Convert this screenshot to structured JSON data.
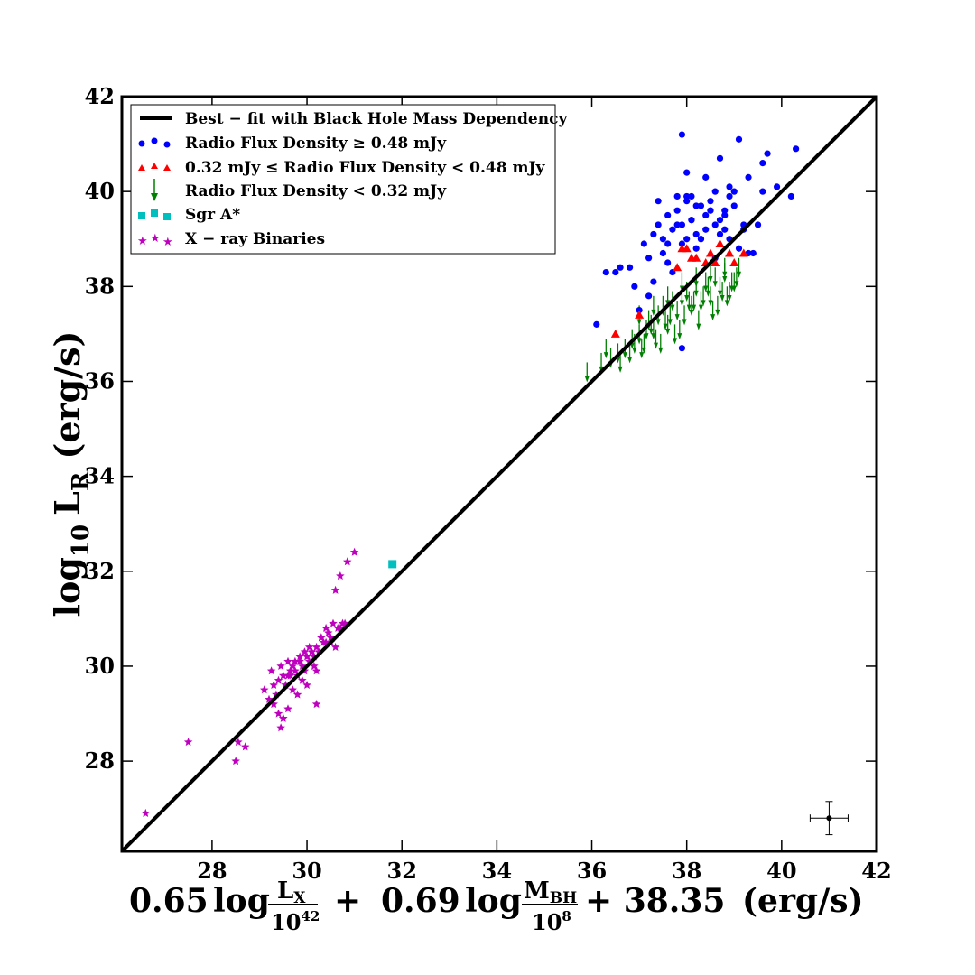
{
  "chart_data": {
    "type": "scatter",
    "title": "",
    "xlabel": "0.65 log (L_X / 10^42) + 0.69 log (M_BH / 10^8) + 38.35 (erg/s)",
    "ylabel": "log10 L_R (erg/s)",
    "xlim": [
      26.1,
      42
    ],
    "ylim": [
      26.1,
      42
    ],
    "xticks": [
      28,
      30,
      32,
      34,
      36,
      38,
      40,
      42
    ],
    "yticks": [
      28,
      30,
      32,
      34,
      36,
      38,
      40,
      42
    ],
    "xlabel_parts": {
      "coef1": "0.65",
      "log": "log",
      "n1": "L",
      "n1_sub": "X",
      "d1": "10",
      "d1_sup": "42",
      "plus": "+",
      "coef2": "0.69",
      "n2": "M",
      "n2_sub": "BH",
      "d2": "10",
      "d2_sup": "8",
      "tail": "+ 38.35",
      "unit": "(erg/s)"
    },
    "ylabel_parts": {
      "pre": "log",
      "pre_sub": "10",
      "main": "L",
      "main_sub": "R",
      "unit": "(erg/s)"
    },
    "legend": {
      "placement": "top-left",
      "entries": [
        {
          "label": "Best − fit with Black Hole Mass Dependency",
          "marker": "line",
          "color": "#000000"
        },
        {
          "label": "Radio Flux Density ≥ 0.48 mJy",
          "marker": "circle",
          "color": "#0000ff"
        },
        {
          "label": "0.32 mJy ≤ Radio Flux Density < 0.48 mJy",
          "marker": "triangle",
          "color": "#ff0000"
        },
        {
          "label": "Radio Flux Density < 0.32 mJy",
          "marker": "arrow",
          "color": "#008000"
        },
        {
          "label": "Sgr A*",
          "marker": "square",
          "color": "#00bfbf"
        },
        {
          "label": "X − ray  Binaries",
          "marker": "star",
          "color": "#bf00bf"
        }
      ]
    },
    "best_fit_line": {
      "x": [
        26.1,
        42
      ],
      "y": [
        26.1,
        42
      ]
    },
    "series": [
      {
        "name": "Radio Flux Density ≥ 0.48 mJy",
        "marker": "circle",
        "color": "#0000ff",
        "x": [
          37.9,
          38.7,
          39.1,
          39.7,
          40.3,
          39.6,
          38.0,
          38.4,
          39.3,
          39.9,
          40.2,
          37.4,
          37.8,
          38.2,
          38.5,
          38.9,
          39.0,
          37.6,
          38.1,
          38.6,
          38.8,
          37.3,
          37.7,
          37.9,
          38.3,
          38.7,
          39.2,
          39.5,
          39.4,
          38.4,
          38.0,
          37.5,
          36.8,
          37.1,
          36.5,
          36.9,
          37.2,
          36.1,
          38.6,
          38.2,
          37.8,
          38.8,
          39.1,
          37.6,
          38.0,
          38.5,
          38.9,
          39.2,
          37.7,
          37.3,
          38.1,
          38.3,
          37.4,
          39.6,
          37.9,
          38.7,
          38.2,
          37.6,
          38.4,
          38.0,
          37.5,
          38.8,
          39.0,
          37.8,
          38.1,
          38.3,
          36.6,
          36.3,
          37.0,
          38.6,
          37.2,
          39.3,
          38.9,
          38.5,
          37.9
        ],
        "y": [
          41.2,
          40.7,
          41.1,
          40.8,
          40.9,
          40.6,
          40.4,
          40.3,
          40.3,
          40.1,
          39.9,
          39.8,
          39.9,
          39.7,
          39.6,
          39.9,
          40.0,
          39.5,
          39.4,
          39.3,
          39.6,
          39.1,
          39.2,
          38.9,
          39.0,
          39.1,
          39.3,
          39.3,
          38.7,
          39.5,
          39.8,
          38.7,
          38.4,
          38.9,
          38.3,
          38.0,
          38.6,
          37.2,
          38.6,
          38.8,
          39.6,
          39.2,
          38.8,
          38.5,
          39.0,
          39.8,
          40.1,
          39.2,
          38.3,
          38.1,
          39.4,
          39.7,
          39.3,
          40.0,
          36.7,
          39.4,
          39.1,
          38.9,
          39.2,
          39.9,
          39.0,
          39.5,
          39.7,
          39.3,
          39.9,
          39.0,
          38.4,
          38.3,
          37.5,
          40.0,
          37.8,
          38.7,
          39.0,
          39.6,
          39.3
        ]
      },
      {
        "name": "0.32 mJy ≤ Radio Flux Density < 0.48 mJy",
        "marker": "triangle",
        "color": "#ff0000",
        "x": [
          36.5,
          37.0,
          37.8,
          38.0,
          38.2,
          38.5,
          38.7,
          39.0,
          39.2,
          38.4,
          38.9,
          37.9,
          38.1,
          38.6
        ],
        "y": [
          37.0,
          37.4,
          38.4,
          38.8,
          38.6,
          38.7,
          38.9,
          38.5,
          38.7,
          38.5,
          38.7,
          38.8,
          38.6,
          38.5
        ]
      },
      {
        "name": "Radio Flux Density < 0.32 mJy",
        "marker": "arrow",
        "color": "#008000",
        "x": [
          35.9,
          36.3,
          36.6,
          36.8,
          37.0,
          37.1,
          37.2,
          37.3,
          37.4,
          37.5,
          37.6,
          37.7,
          37.8,
          37.9,
          38.0,
          38.1,
          38.2,
          38.3,
          38.4,
          38.5,
          38.6,
          38.7,
          38.8,
          38.9,
          39.0,
          39.1,
          36.7,
          36.9,
          37.15,
          37.35,
          37.55,
          37.75,
          37.95,
          38.15,
          38.35,
          38.55,
          38.75,
          38.95,
          36.4,
          36.55,
          37.05,
          37.25,
          37.45,
          37.65,
          37.85,
          38.05,
          38.25,
          38.45,
          38.65,
          38.85,
          39.05,
          37.0,
          37.3,
          37.6,
          37.9,
          38.2,
          38.5,
          38.8,
          36.2,
          36.85
        ],
        "y": [
          36.4,
          36.9,
          36.6,
          36.8,
          37.2,
          37.0,
          37.5,
          37.3,
          37.6,
          37.8,
          37.4,
          37.9,
          37.7,
          38.0,
          38.1,
          37.8,
          38.2,
          37.9,
          38.3,
          38.0,
          38.4,
          38.2,
          38.5,
          38.1,
          38.3,
          38.6,
          36.9,
          37.0,
          37.3,
          37.1,
          37.5,
          37.2,
          37.6,
          37.9,
          38.0,
          37.7,
          38.1,
          38.3,
          36.7,
          36.8,
          36.9,
          37.4,
          37.0,
          37.6,
          37.3,
          37.9,
          37.5,
          38.2,
          37.8,
          38.0,
          38.4,
          37.6,
          37.8,
          38.0,
          38.3,
          38.4,
          38.5,
          38.6,
          36.6,
          37.1
        ]
      },
      {
        "name": "Sgr A*",
        "marker": "square",
        "color": "#00bfbf",
        "x": [
          31.8
        ],
        "y": [
          32.15
        ]
      },
      {
        "name": "X − ray  Binaries",
        "marker": "star",
        "color": "#bf00bf",
        "x": [
          26.6,
          27.5,
          28.5,
          28.55,
          28.7,
          29.1,
          29.2,
          29.25,
          29.3,
          29.35,
          29.4,
          29.45,
          29.5,
          29.55,
          29.6,
          29.65,
          29.7,
          29.75,
          29.8,
          29.85,
          29.9,
          29.95,
          30.0,
          30.05,
          30.1,
          30.15,
          30.2,
          30.25,
          30.3,
          30.35,
          30.4,
          30.45,
          30.5,
          30.55,
          30.6,
          30.65,
          30.7,
          30.75,
          30.8,
          30.85,
          31.0,
          29.4,
          29.5,
          29.6,
          29.7,
          29.8,
          29.9,
          30.0,
          30.1,
          30.2,
          30.3,
          30.4,
          29.3,
          29.45,
          29.55,
          29.65,
          29.75,
          29.85,
          29.95,
          30.05,
          30.15,
          30.5,
          30.6,
          30.7,
          30.2,
          29.5,
          29.6
        ],
        "y": [
          26.9,
          28.4,
          28.0,
          28.4,
          28.3,
          29.5,
          29.3,
          29.9,
          29.6,
          29.4,
          29.7,
          30.0,
          29.8,
          29.6,
          30.1,
          29.9,
          30.0,
          30.1,
          29.8,
          30.2,
          30.0,
          30.3,
          30.2,
          30.4,
          30.3,
          30.2,
          30.4,
          30.3,
          30.6,
          30.5,
          30.8,
          30.7,
          30.6,
          30.9,
          31.6,
          30.8,
          31.9,
          30.9,
          30.9,
          32.2,
          32.4,
          29.0,
          28.9,
          29.1,
          29.5,
          29.4,
          29.7,
          29.6,
          30.3,
          29.9,
          30.6,
          30.5,
          29.2,
          28.7,
          29.6,
          29.8,
          29.9,
          30.1,
          29.9,
          30.1,
          30.0,
          30.5,
          30.4,
          30.8,
          29.2,
          28.9,
          29.8
        ]
      }
    ],
    "error_bar_example": {
      "x": 41.0,
      "y": 26.8,
      "xerr": 0.4,
      "yerr": 0.35
    }
  }
}
